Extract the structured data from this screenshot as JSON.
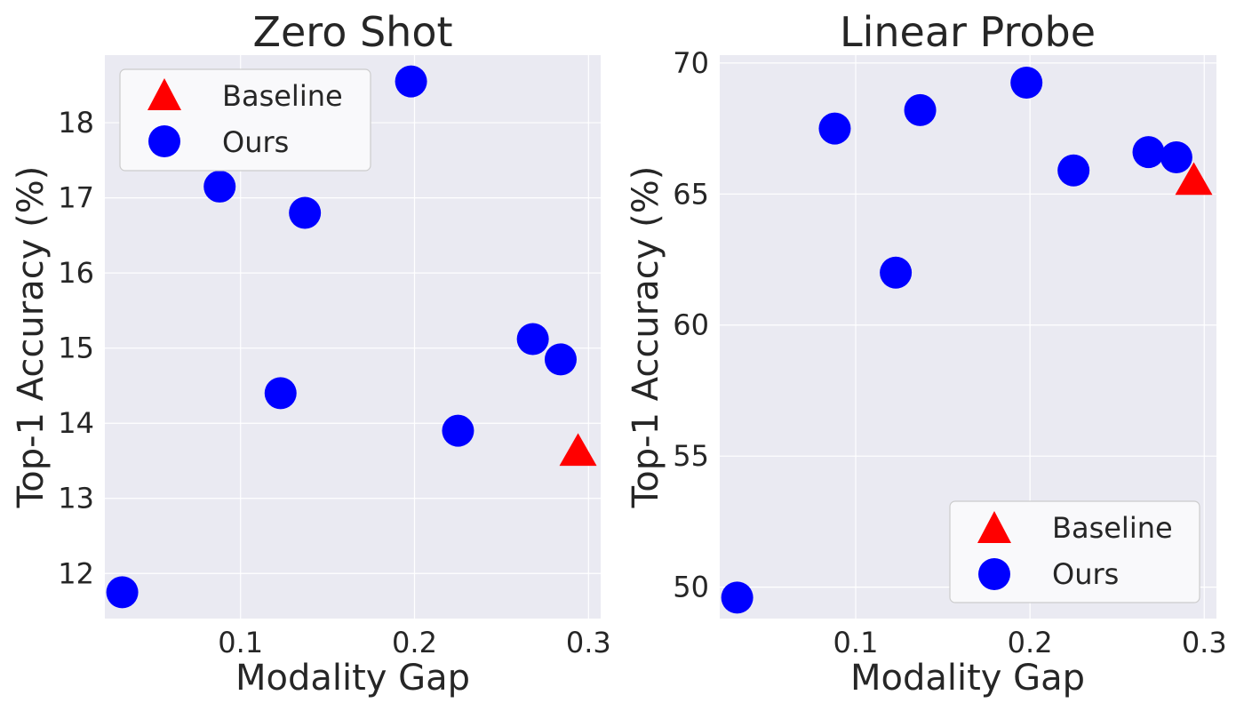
{
  "chart_data": [
    {
      "type": "scatter",
      "title": "Zero Shot",
      "xlabel": "Modality Gap",
      "ylabel": "Top-1 Accuracy (%)",
      "xlim": [
        0.022,
        0.307
      ],
      "ylim": [
        11.4,
        18.9
      ],
      "xticks": [
        0.1,
        0.2,
        0.3
      ],
      "xtick_labels": [
        "0.1",
        "0.2",
        "0.3"
      ],
      "yticks": [
        12,
        13,
        14,
        15,
        16,
        17,
        18
      ],
      "ytick_labels": [
        "12",
        "13",
        "14",
        "15",
        "16",
        "17",
        "18"
      ],
      "grid": true,
      "legend_position": "upper-left",
      "series": [
        {
          "name": "Baseline",
          "marker": "triangle",
          "color": "#ff0000",
          "points": [
            {
              "x": 0.294,
              "y": 13.62
            }
          ]
        },
        {
          "name": "Ours",
          "marker": "circle",
          "color": "#0000ff",
          "points": [
            {
              "x": 0.032,
              "y": 11.75
            },
            {
              "x": 0.088,
              "y": 17.15
            },
            {
              "x": 0.123,
              "y": 14.4
            },
            {
              "x": 0.137,
              "y": 16.8
            },
            {
              "x": 0.198,
              "y": 18.55
            },
            {
              "x": 0.225,
              "y": 13.9
            },
            {
              "x": 0.268,
              "y": 15.12
            },
            {
              "x": 0.284,
              "y": 14.85
            }
          ]
        }
      ]
    },
    {
      "type": "scatter",
      "title": "Linear Probe",
      "xlabel": "Modality Gap",
      "ylabel": "Top-1 Accuracy (%)",
      "xlim": [
        0.022,
        0.307
      ],
      "ylim": [
        48.8,
        70.3
      ],
      "xticks": [
        0.1,
        0.2,
        0.3
      ],
      "xtick_labels": [
        "0.1",
        "0.2",
        "0.3"
      ],
      "yticks": [
        50,
        55,
        60,
        65,
        70
      ],
      "ytick_labels": [
        "50",
        "55",
        "60",
        "65",
        "70"
      ],
      "grid": true,
      "legend_position": "lower-right",
      "series": [
        {
          "name": "Baseline",
          "marker": "triangle",
          "color": "#ff0000",
          "points": [
            {
              "x": 0.294,
              "y": 65.5
            }
          ]
        },
        {
          "name": "Ours",
          "marker": "circle",
          "color": "#0000ff",
          "points": [
            {
              "x": 0.032,
              "y": 49.6
            },
            {
              "x": 0.088,
              "y": 67.5
            },
            {
              "x": 0.123,
              "y": 62.0
            },
            {
              "x": 0.137,
              "y": 68.2
            },
            {
              "x": 0.198,
              "y": 69.25
            },
            {
              "x": 0.225,
              "y": 65.9
            },
            {
              "x": 0.268,
              "y": 66.6
            },
            {
              "x": 0.284,
              "y": 66.4
            }
          ]
        }
      ]
    }
  ]
}
